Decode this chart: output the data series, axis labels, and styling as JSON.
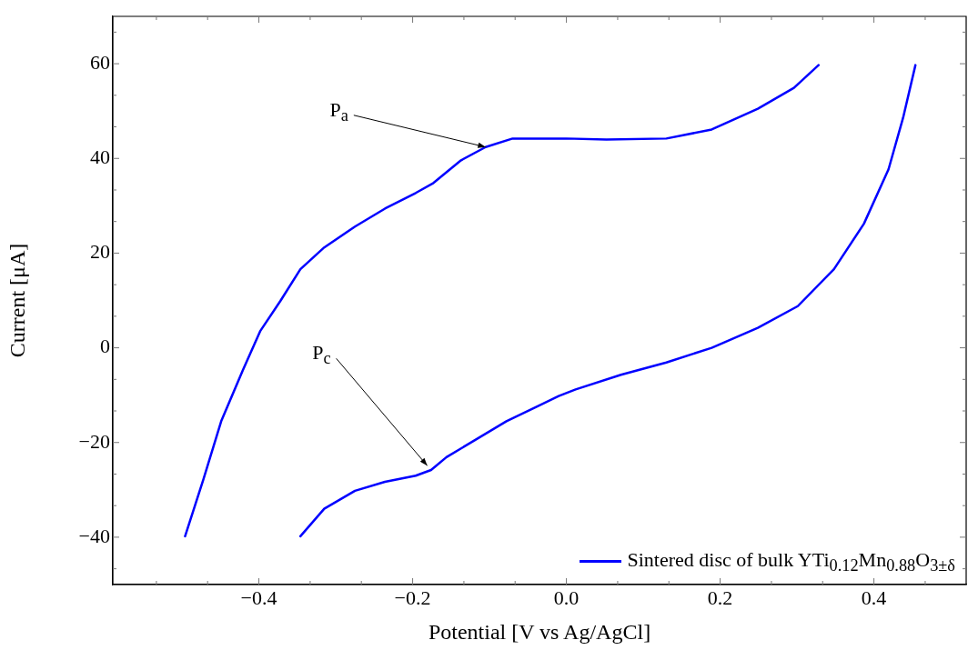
{
  "chart_data": {
    "type": "line",
    "xlabel": "Potential [V vs Ag/AgCl]",
    "ylabel": "Current [μA]",
    "xlim": [
      -0.59,
      0.52
    ],
    "ylim": [
      -50,
      70
    ],
    "xticks": [
      {
        "value": -0.5333,
        "label": null
      },
      {
        "value": -0.4667,
        "label": null
      },
      {
        "value": -0.4,
        "label": "−0.4"
      },
      {
        "value": -0.3333,
        "label": null
      },
      {
        "value": -0.2667,
        "label": null
      },
      {
        "value": -0.2,
        "label": "−0.2"
      },
      {
        "value": -0.1333,
        "label": null
      },
      {
        "value": -0.0667,
        "label": null
      },
      {
        "value": 0,
        "label": "0.0"
      },
      {
        "value": 0.0667,
        "label": null
      },
      {
        "value": 0.1333,
        "label": null
      },
      {
        "value": 0.2,
        "label": "0.2"
      },
      {
        "value": 0.2667,
        "label": null
      },
      {
        "value": 0.3333,
        "label": null
      },
      {
        "value": 0.4,
        "label": "0.4"
      },
      {
        "value": 0.4667,
        "label": null
      }
    ],
    "yticks": [
      {
        "value": -46.67,
        "label": null
      },
      {
        "value": -40,
        "label": "−40"
      },
      {
        "value": -33.33,
        "label": null
      },
      {
        "value": -26.67,
        "label": null
      },
      {
        "value": -20,
        "label": "−20"
      },
      {
        "value": -13.33,
        "label": null
      },
      {
        "value": -6.67,
        "label": null
      },
      0,
      {
        "value": 6.67,
        "label": null
      },
      {
        "value": 13.33,
        "label": null
      },
      20,
      {
        "value": 26.67,
        "label": null
      },
      {
        "value": 33.33,
        "label": null
      },
      40,
      {
        "value": 46.67,
        "label": null
      },
      {
        "value": 53.33,
        "label": null
      },
      60,
      {
        "value": 66.67,
        "label": null
      }
    ],
    "grid": false,
    "legend": "bottom right",
    "marker": "none",
    "line_style": "solid",
    "annotations": [
      {
        "text": "P$_{a}$",
        "x": -0.105,
        "y": 42.4
      },
      {
        "text": "P$_{c}$",
        "x": -0.181,
        "y": -24.9
      }
    ],
    "series": [
      {
        "name": "Sintered disc of bulk YTi$_{0.12}$Mn$_{0.88}$O$_{3±δ}$",
        "color": "#0000ff",
        "x": [
          -0.496,
          -0.472,
          -0.449,
          -0.421,
          -0.398,
          -0.372,
          -0.346,
          -0.315,
          -0.275,
          -0.236,
          -0.196,
          -0.173,
          -0.137,
          -0.105,
          -0.07,
          0,
          0.052,
          0.13,
          0.189,
          0.249,
          0.296,
          0.328
        ],
        "values": [
          -39.8,
          -27.7,
          -15.5,
          -4.8,
          3.6,
          9.9,
          16.6,
          21.2,
          25.6,
          29.4,
          32.7,
          34.8,
          39.6,
          42.4,
          44.2,
          44.2,
          44,
          44.2,
          46.1,
          50.5,
          54.9,
          59.7
        ]
      },
      {
        "color": "#0000ff",
        "x": [
          -0.346,
          -0.315,
          -0.275,
          -0.236,
          -0.196,
          -0.176,
          -0.156,
          -0.117,
          -0.078,
          -0.038,
          -0.01,
          0.012,
          0.071,
          0.13,
          0.189,
          0.249,
          0.301,
          0.348,
          0.387,
          0.419,
          0.438,
          0.454
        ],
        "values": [
          -39.8,
          -34,
          -30.2,
          -28.3,
          -27,
          -25.8,
          -23.1,
          -19.3,
          -15.5,
          -12.4,
          -10.2,
          -8.8,
          -5.7,
          -3.1,
          0,
          4.2,
          8.8,
          16.6,
          26.2,
          37.7,
          48.6,
          59.7
        ]
      }
    ]
  }
}
